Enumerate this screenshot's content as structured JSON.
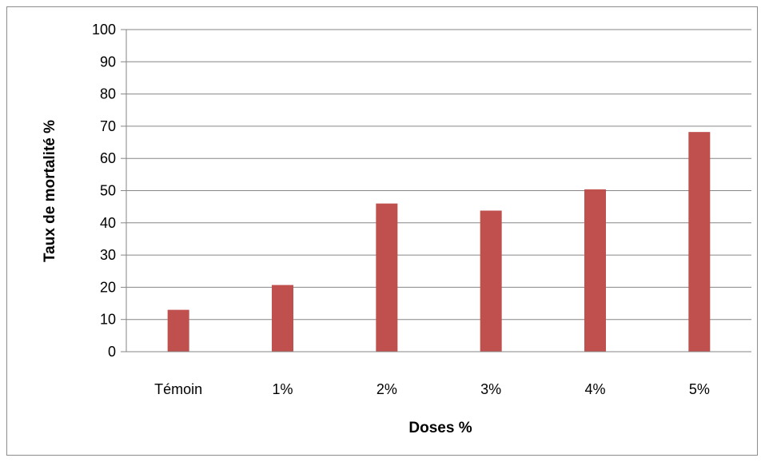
{
  "chart_data": {
    "type": "bar",
    "title": "",
    "xlabel": "Doses %",
    "ylabel": "Taux de mortalité %",
    "categories": [
      "Témoin",
      "1%",
      "2%",
      "3%",
      "4%",
      "5%"
    ],
    "series": [
      {
        "values": [
          13,
          20.7,
          46,
          43.8,
          50.4,
          68.2
        ]
      }
    ],
    "ylim": [
      0,
      100
    ],
    "yticks": [
      "0",
      "10",
      "20",
      "30",
      "40",
      "50",
      "60",
      "70",
      "80",
      "90",
      "100"
    ],
    "grid": true,
    "legend": "none",
    "colors": {
      "bar": "#c0504d",
      "grid": "#868686",
      "axis": "#868686",
      "frame": "#8c8c8c"
    }
  }
}
